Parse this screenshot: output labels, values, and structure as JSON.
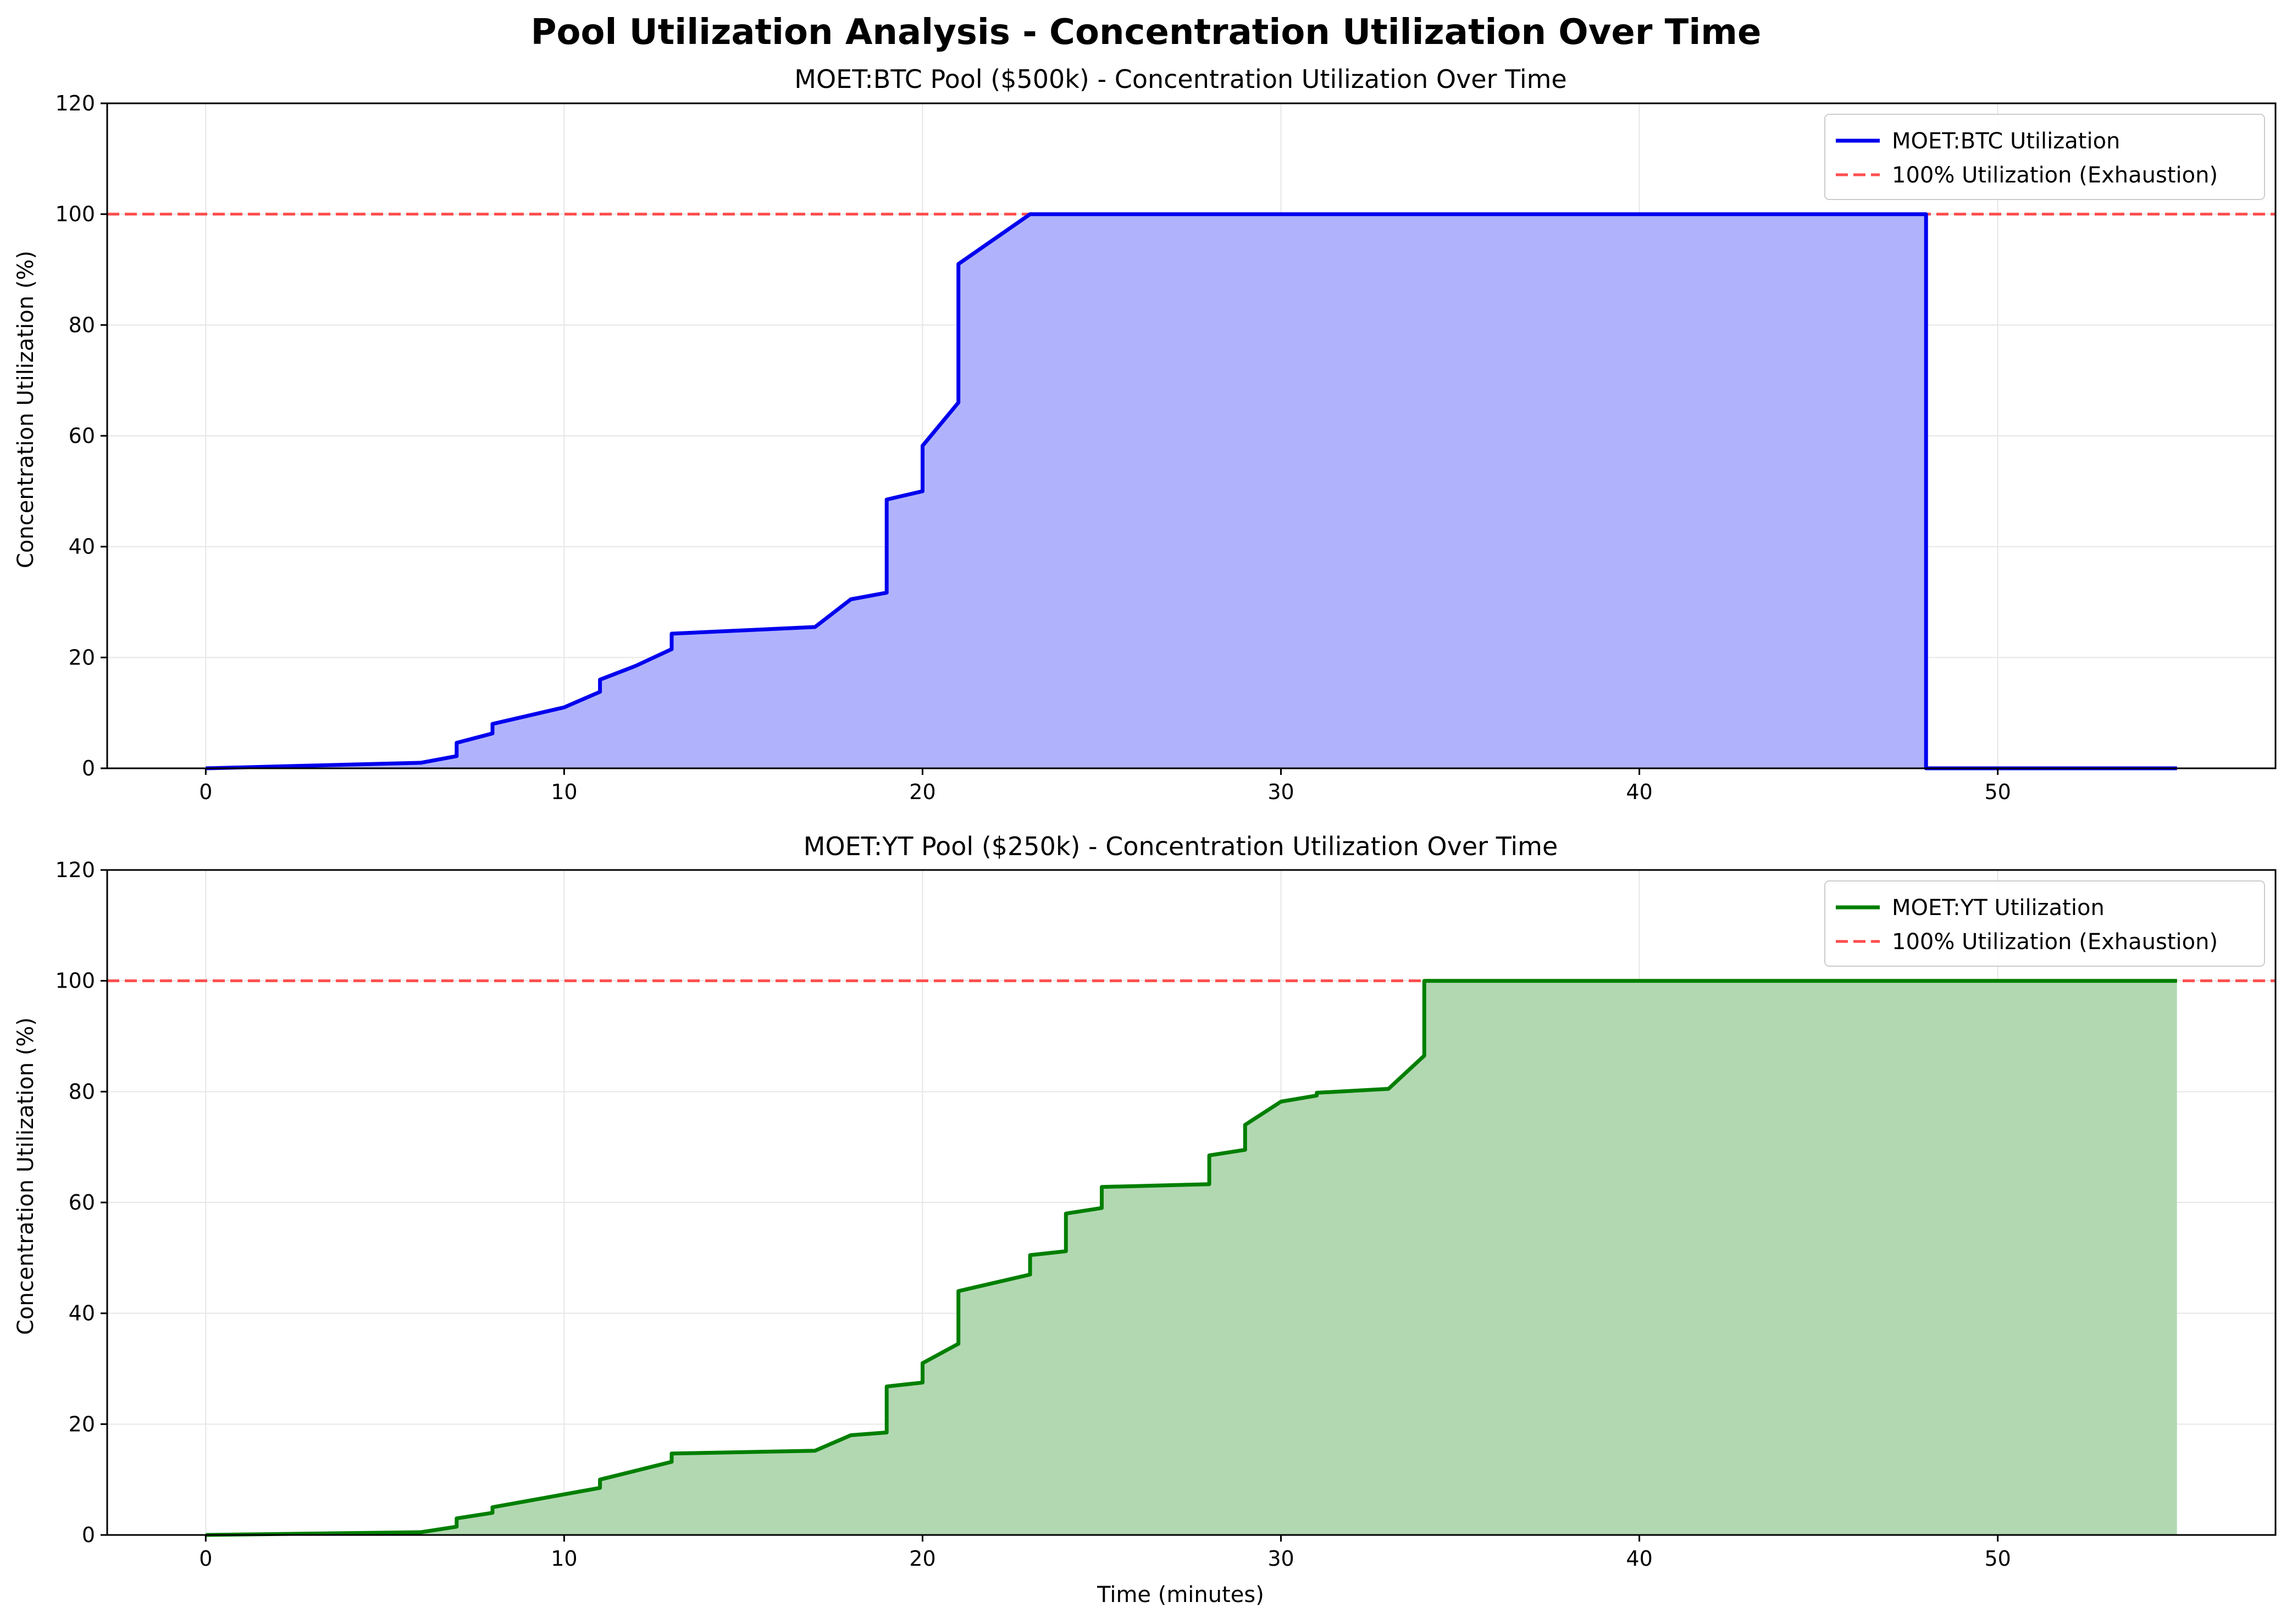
{
  "figure": {
    "suptitle": "Pool Utilization Analysis - Concentration Utilization Over Time"
  },
  "chart_data": [
    {
      "type": "area",
      "title": "MOET:BTC Pool ($500k) - Concentration Utilization Over Time",
      "xlabel": "",
      "ylabel": "Concentration Utilization (%)",
      "xlim": [
        -2.75,
        57.75
      ],
      "ylim": [
        0,
        120
      ],
      "xticks": [
        0,
        10,
        20,
        30,
        40,
        50
      ],
      "yticks": [
        0,
        20,
        40,
        60,
        80,
        100,
        120
      ],
      "grid": true,
      "legend_position": "top-right",
      "series": [
        {
          "name": "MOET:BTC Utilization",
          "color": "#0000ee",
          "fill_color": "#b0b3fc",
          "x": [
            0,
            6,
            7,
            7,
            8,
            8,
            10,
            11,
            11,
            12,
            13,
            13,
            17,
            18,
            19,
            19,
            20,
            20,
            21,
            21,
            23,
            48,
            48,
            55
          ],
          "y": [
            0,
            1.0,
            2.2,
            4.6,
            6.3,
            8.0,
            11.0,
            13.8,
            16.0,
            18.5,
            21.5,
            24.3,
            25.5,
            30.5,
            31.7,
            48.5,
            50.0,
            58.2,
            66.0,
            91.0,
            100,
            100,
            0,
            0
          ]
        }
      ],
      "reference_line": {
        "name": "100% Utilization (Exhaustion)",
        "y": 100,
        "color": "#ff4d4d",
        "style": "dashed"
      }
    },
    {
      "type": "area",
      "title": "MOET:YT Pool ($250k) - Concentration Utilization Over Time",
      "xlabel": "Time (minutes)",
      "ylabel": "Concentration Utilization (%)",
      "xlim": [
        -2.75,
        57.75
      ],
      "ylim": [
        0,
        120
      ],
      "xticks": [
        0,
        10,
        20,
        30,
        40,
        50
      ],
      "yticks": [
        0,
        20,
        40,
        60,
        80,
        100,
        120
      ],
      "grid": true,
      "legend_position": "top-right",
      "series": [
        {
          "name": "MOET:YT Utilization",
          "color": "#007f00",
          "fill_color": "#b2d8b2",
          "x": [
            0,
            6,
            7,
            7,
            8,
            8,
            11,
            11,
            13,
            13,
            17,
            18,
            19,
            19,
            20,
            20,
            21,
            21,
            23,
            23,
            24,
            24,
            25,
            25,
            28,
            28,
            29,
            29,
            30,
            31,
            31,
            33,
            34,
            34,
            55
          ],
          "y": [
            0,
            0.5,
            1.5,
            3.0,
            4.0,
            5.0,
            8.5,
            10.0,
            13.2,
            14.7,
            15.2,
            18.0,
            18.5,
            26.8,
            27.5,
            31.0,
            34.5,
            44.0,
            47.0,
            50.5,
            51.2,
            58.0,
            59.0,
            62.8,
            63.3,
            68.5,
            69.5,
            74.0,
            78.2,
            79.3,
            79.8,
            80.5,
            86.5,
            100,
            100
          ]
        }
      ],
      "reference_line": {
        "name": "100% Utilization (Exhaustion)",
        "y": 100,
        "color": "#ff4d4d",
        "style": "dashed"
      }
    }
  ]
}
